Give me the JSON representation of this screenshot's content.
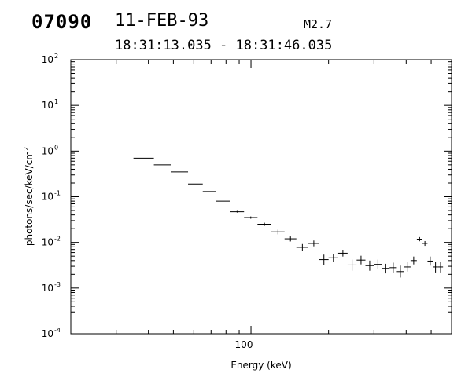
{
  "header": {
    "burst_id": "07090",
    "date": "11-FEB-93",
    "flare_class": "M2.7",
    "time_range": "18:31:13.035 - 18:31:46.035"
  },
  "chart_data": {
    "type": "scatter",
    "title": "",
    "xlabel": "Energy (keV)",
    "ylabel": "photons/sec/keV/cm",
    "ylabel_superscript": "2",
    "x_scale": "log",
    "y_scale": "log",
    "xlim": [
      20,
      600
    ],
    "ylim": [
      0.0001,
      100
    ],
    "x_tick_label": "100",
    "x_tick_label_value": 100,
    "y_tick_labels": [
      {
        "value": 0.0001,
        "base": "10",
        "exp": "-4"
      },
      {
        "value": 0.001,
        "base": "10",
        "exp": "-3"
      },
      {
        "value": 0.01,
        "base": "10",
        "exp": "-2"
      },
      {
        "value": 0.1,
        "base": "10",
        "exp": "-1"
      },
      {
        "value": 1,
        "base": "10",
        "exp": "0"
      },
      {
        "value": 10,
        "base": "10",
        "exp": "1"
      },
      {
        "value": 100,
        "base": "10",
        "exp": "2"
      }
    ],
    "grid": false,
    "marker": "error-cross",
    "color": "#000000",
    "points": [
      {
        "x_lo": 35,
        "x_hi": 42,
        "y": 0.7,
        "y_lo": 0.7,
        "y_hi": 0.7
      },
      {
        "x_lo": 42,
        "x_hi": 49,
        "y": 0.5,
        "y_lo": 0.5,
        "y_hi": 0.5
      },
      {
        "x_lo": 49,
        "x_hi": 57,
        "y": 0.35,
        "y_lo": 0.35,
        "y_hi": 0.35
      },
      {
        "x_lo": 57,
        "x_hi": 65,
        "y": 0.19,
        "y_lo": 0.19,
        "y_hi": 0.19
      },
      {
        "x_lo": 65,
        "x_hi": 73,
        "y": 0.13,
        "y_lo": 0.13,
        "y_hi": 0.13
      },
      {
        "x_lo": 73,
        "x_hi": 83,
        "y": 0.08,
        "y_lo": 0.08,
        "y_hi": 0.08
      },
      {
        "x_lo": 83,
        "x_hi": 94,
        "y": 0.047,
        "y_lo": 0.045,
        "y_hi": 0.049
      },
      {
        "x_lo": 94,
        "x_hi": 106,
        "y": 0.035,
        "y_lo": 0.033,
        "y_hi": 0.037
      },
      {
        "x_lo": 106,
        "x_hi": 120,
        "y": 0.025,
        "y_lo": 0.023,
        "y_hi": 0.027
      },
      {
        "x_lo": 120,
        "x_hi": 135,
        "y": 0.017,
        "y_lo": 0.015,
        "y_hi": 0.019
      },
      {
        "x_lo": 135,
        "x_hi": 150,
        "y": 0.012,
        "y_lo": 0.0105,
        "y_hi": 0.0135
      },
      {
        "x_lo": 150,
        "x_hi": 167,
        "y": 0.0078,
        "y_lo": 0.0065,
        "y_hi": 0.0092
      },
      {
        "x_lo": 167,
        "x_hi": 184,
        "y": 0.0095,
        "y_lo": 0.0082,
        "y_hi": 0.011
      },
      {
        "x_lo": 184,
        "x_hi": 200,
        "y": 0.0042,
        "y_lo": 0.0032,
        "y_hi": 0.0054
      },
      {
        "x_lo": 200,
        "x_hi": 218,
        "y": 0.0046,
        "y_lo": 0.0037,
        "y_hi": 0.0056
      },
      {
        "x_lo": 218,
        "x_hi": 237,
        "y": 0.0058,
        "y_lo": 0.0049,
        "y_hi": 0.0069
      },
      {
        "x_lo": 237,
        "x_hi": 257,
        "y": 0.0032,
        "y_lo": 0.0024,
        "y_hi": 0.0042
      },
      {
        "x_lo": 257,
        "x_hi": 278,
        "y": 0.0041,
        "y_lo": 0.0033,
        "y_hi": 0.0051
      },
      {
        "x_lo": 278,
        "x_hi": 300,
        "y": 0.0031,
        "y_lo": 0.0024,
        "y_hi": 0.004
      },
      {
        "x_lo": 300,
        "x_hi": 322,
        "y": 0.0033,
        "y_lo": 0.0026,
        "y_hi": 0.0042
      },
      {
        "x_lo": 322,
        "x_hi": 345,
        "y": 0.0027,
        "y_lo": 0.0021,
        "y_hi": 0.0034
      },
      {
        "x_lo": 345,
        "x_hi": 368,
        "y": 0.0028,
        "y_lo": 0.0022,
        "y_hi": 0.0036
      },
      {
        "x_lo": 368,
        "x_hi": 392,
        "y": 0.0023,
        "y_lo": 0.0017,
        "y_hi": 0.0031
      },
      {
        "x_lo": 392,
        "x_hi": 416,
        "y": 0.0029,
        "y_lo": 0.0023,
        "y_hi": 0.0037
      },
      {
        "x_lo": 416,
        "x_hi": 440,
        "y": 0.004,
        "y_lo": 0.0033,
        "y_hi": 0.0049
      },
      {
        "x_lo": 440,
        "x_hi": 462,
        "y": 0.0118,
        "y_lo": 0.0106,
        "y_hi": 0.0131
      },
      {
        "x_lo": 462,
        "x_hi": 484,
        "y": 0.0095,
        "y_lo": 0.0084,
        "y_hi": 0.0107
      },
      {
        "x_lo": 484,
        "x_hi": 508,
        "y": 0.0039,
        "y_lo": 0.0031,
        "y_hi": 0.0049
      },
      {
        "x_lo": 508,
        "x_hi": 532,
        "y": 0.0029,
        "y_lo": 0.0022,
        "y_hi": 0.0038
      },
      {
        "x_lo": 532,
        "x_hi": 556,
        "y": 0.0029,
        "y_lo": 0.0022,
        "y_hi": 0.0038
      }
    ]
  }
}
